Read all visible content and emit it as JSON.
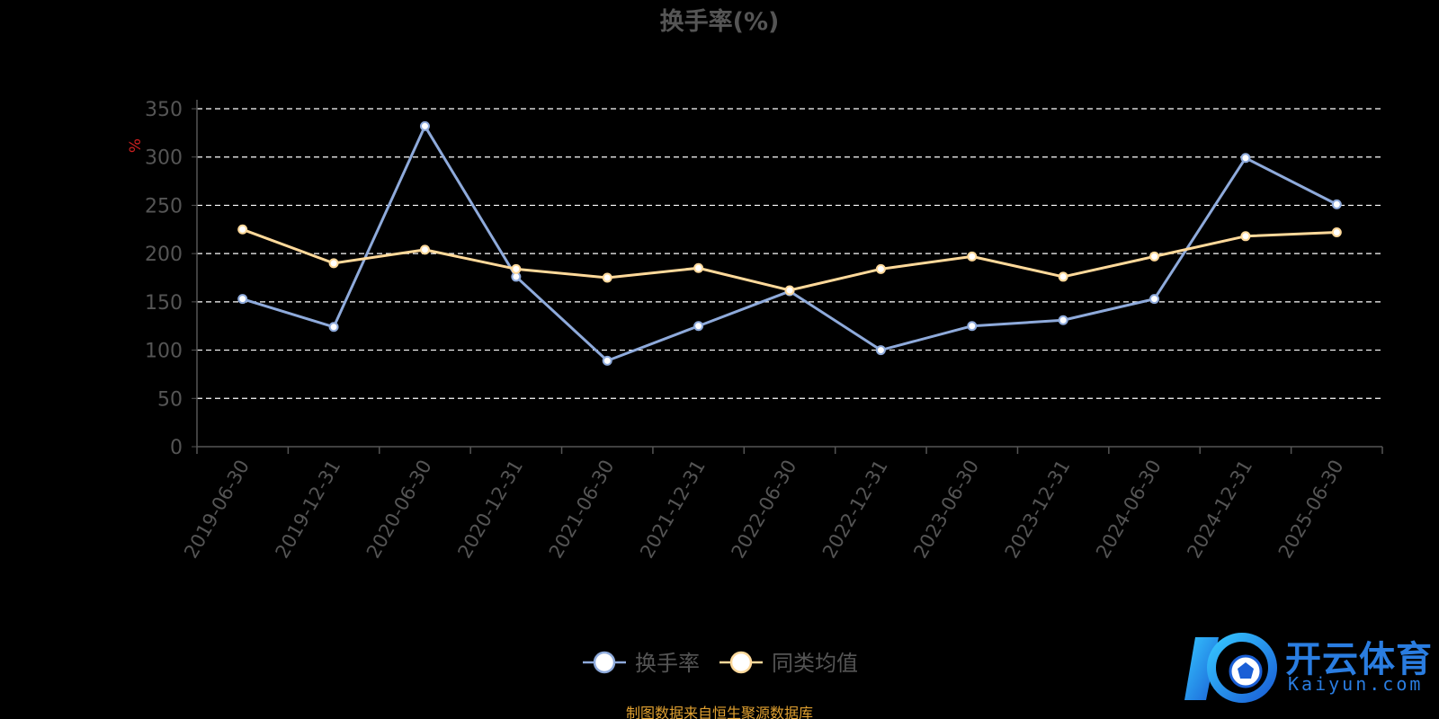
{
  "chart_data": {
    "type": "line",
    "title": "换手率(%)",
    "ylabel": "%",
    "ylim": [
      0,
      350
    ],
    "yticks": [
      0,
      50,
      100,
      150,
      200,
      250,
      300,
      350
    ],
    "grid": true,
    "legend_position": "bottom",
    "categories": [
      "2019-06-30",
      "2019-12-31",
      "2020-06-30",
      "2020-12-31",
      "2021-06-30",
      "2021-12-31",
      "2022-06-30",
      "2022-12-31",
      "2023-06-30",
      "2023-12-31",
      "2024-06-30",
      "2024-12-31",
      "2025-06-30"
    ],
    "series": [
      {
        "name": "换手率",
        "color": "#8eaadb",
        "values": [
          153,
          124,
          332,
          176,
          89,
          125,
          161,
          100,
          125,
          131,
          153,
          299,
          251
        ]
      },
      {
        "name": "同类均值",
        "color": "#ffd99a",
        "values": [
          225,
          190,
          204,
          184,
          175,
          185,
          162,
          184,
          197,
          176,
          197,
          218,
          222
        ]
      }
    ]
  },
  "source_text": "制图数据来自恒生聚源数据库",
  "watermark": {
    "name": "开云体育",
    "domain": "Kaiyun.com",
    "color": "#2a7de1"
  }
}
